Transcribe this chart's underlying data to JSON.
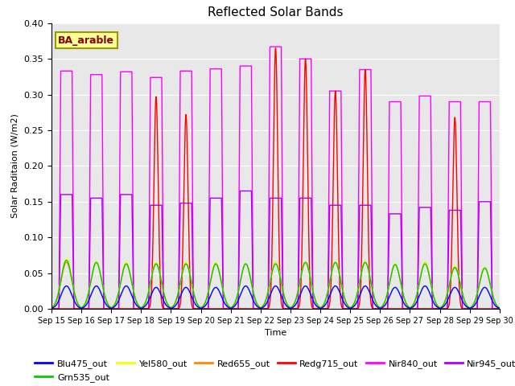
{
  "title": "Reflected Solar Bands",
  "xlabel": "Time",
  "ylabel": "Solar Raditaion (W/m2)",
  "annotation": "BA_arable",
  "ylim": [
    0.0,
    0.4
  ],
  "n_days": 15,
  "day_labels": [
    "Sep 15",
    "Sep 16",
    "Sep 17",
    "Sep 18",
    "Sep 19",
    "Sep 20",
    "Sep 21",
    "Sep 22",
    "Sep 23",
    "Sep 24",
    "Sep 25",
    "Sep 26",
    "Sep 27",
    "Sep 28",
    "Sep 29",
    "Sep 30"
  ],
  "nir840_peaks": [
    0.333,
    0.328,
    0.332,
    0.324,
    0.333,
    0.336,
    0.34,
    0.367,
    0.35,
    0.305,
    0.335,
    0.29,
    0.298,
    0.29,
    0.29
  ],
  "nir945_peaks": [
    0.16,
    0.155,
    0.16,
    0.145,
    0.148,
    0.155,
    0.165,
    0.155,
    0.155,
    0.145,
    0.145,
    0.133,
    0.142,
    0.138,
    0.15
  ],
  "redg715_peaks": [
    0.0,
    0.0,
    0.0,
    0.297,
    0.272,
    0.0,
    0.0,
    0.365,
    0.35,
    0.305,
    0.335,
    0.0,
    0.0,
    0.268,
    0.0
  ],
  "red655_peaks": [
    0.065,
    0.065,
    0.063,
    0.063,
    0.063,
    0.063,
    0.063,
    0.065,
    0.065,
    0.065,
    0.065,
    0.062,
    0.065,
    0.058,
    0.058
  ],
  "yel580_peaks": [
    0.07,
    0.066,
    0.065,
    0.065,
    0.065,
    0.065,
    0.063,
    0.065,
    0.065,
    0.066,
    0.066,
    0.063,
    0.065,
    0.06,
    0.058
  ],
  "grn535_peaks": [
    0.068,
    0.065,
    0.063,
    0.063,
    0.063,
    0.063,
    0.063,
    0.063,
    0.065,
    0.065,
    0.065,
    0.062,
    0.063,
    0.058,
    0.057
  ],
  "blu475_peaks": [
    0.032,
    0.032,
    0.032,
    0.03,
    0.03,
    0.03,
    0.032,
    0.032,
    0.032,
    0.032,
    0.032,
    0.03,
    0.032,
    0.03,
    0.03
  ],
  "bg_color": "#e8e8e8",
  "colors": {
    "Blu475_out": "#0000ff",
    "Grn535_out": "#00cc00",
    "Yel580_out": "#ffff00",
    "Red655_out": "#ff8800",
    "Redg715_out": "#ff0000",
    "Nir840_out": "#ff00ff",
    "Nir945_out": "#aa00ff"
  }
}
